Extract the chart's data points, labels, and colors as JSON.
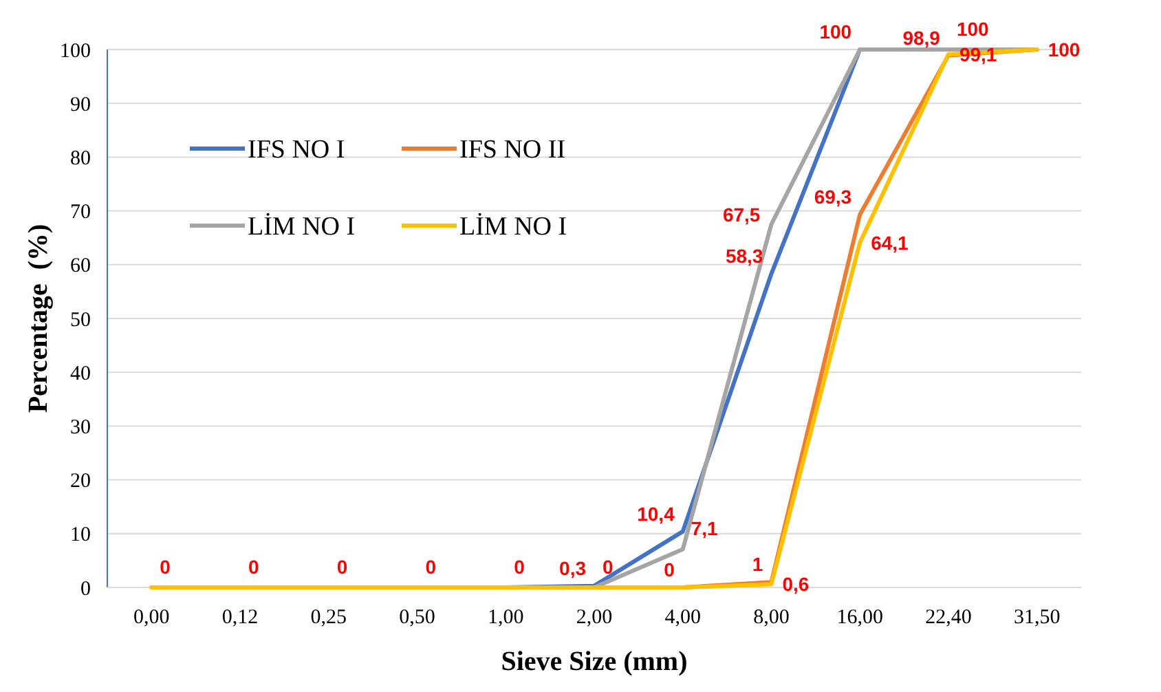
{
  "chart_data": {
    "type": "line",
    "xlabel": "Sieve Size (mm)",
    "ylabel": "Percentage  (%)",
    "categories": [
      "0,00",
      "0,12",
      "0,25",
      "0,50",
      "1,00",
      "2,00",
      "4,00",
      "8,00",
      "16,00",
      "22,40",
      "31,50"
    ],
    "ylim": [
      0,
      100
    ],
    "yticks": [
      0,
      10,
      20,
      30,
      40,
      50,
      60,
      70,
      80,
      90,
      100
    ],
    "grid": "y",
    "legend": "top left",
    "marker": "none",
    "line_style": "solid",
    "series": [
      {
        "name": "IFS NO I",
        "color": "#4472c4",
        "values": [
          null,
          null,
          null,
          null,
          0,
          0.3,
          10.4,
          58.3,
          100,
          null,
          null
        ],
        "value_labels": [
          null,
          null,
          null,
          null,
          null,
          "0,3",
          "10,4",
          "58,3",
          "100",
          null,
          null
        ]
      },
      {
        "name": "IFS NO II",
        "color": "#ed7d31",
        "values": [
          null,
          null,
          null,
          null,
          null,
          null,
          0,
          1,
          69.3,
          98.9,
          100
        ],
        "value_labels": [
          null,
          null,
          null,
          null,
          null,
          null,
          "0",
          "1",
          "69,3",
          "98,9",
          null
        ]
      },
      {
        "name": "LİM NO I",
        "color": "#a5a5a5",
        "values": [
          0,
          0,
          0,
          0,
          0,
          0,
          7.1,
          67.5,
          100,
          100,
          100
        ],
        "value_labels": [
          "0",
          "0",
          "0",
          "0",
          "0",
          "0",
          "7,1",
          "67,5",
          null,
          "100",
          null
        ]
      },
      {
        "name": "LİM NO I",
        "color": "#ffc000",
        "values": [
          0,
          0,
          0,
          0,
          0,
          0,
          0,
          0.6,
          64.1,
          99.1,
          100
        ],
        "value_labels": [
          null,
          null,
          null,
          null,
          null,
          null,
          null,
          "0,6",
          "64,1",
          "99,1",
          "100"
        ]
      }
    ]
  }
}
